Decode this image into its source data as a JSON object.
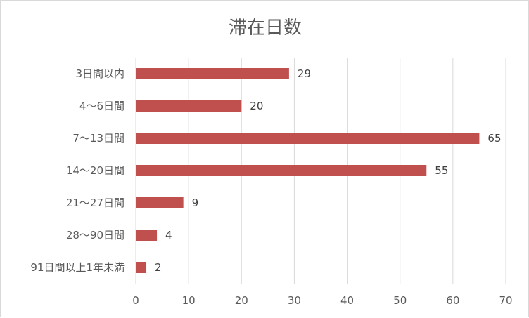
{
  "chart_data": {
    "type": "bar",
    "orientation": "horizontal",
    "title": "滞在日数",
    "categories": [
      "3日間以内",
      "4〜6日間",
      "7〜13日間",
      "14〜20日間",
      "21〜27日間",
      "28〜90日間",
      "91日間以上1年未満"
    ],
    "values": [
      29,
      20,
      65,
      55,
      9,
      4,
      2
    ],
    "xlim": [
      0,
      70
    ],
    "xticks": [
      0,
      10,
      20,
      30,
      40,
      50,
      60,
      70
    ],
    "grid": true,
    "data_labels": true,
    "bar_color": "#C0504D"
  }
}
